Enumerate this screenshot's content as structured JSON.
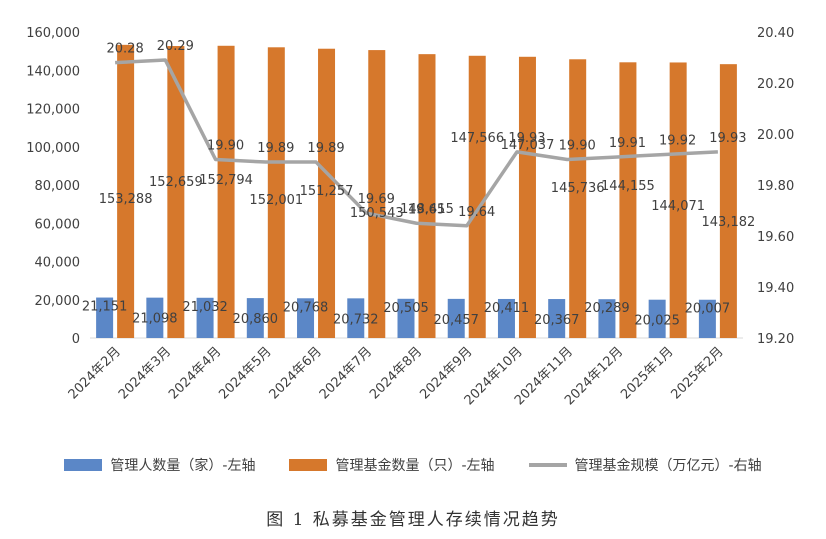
{
  "chart_data": {
    "type": "bar",
    "title": "",
    "categories": [
      "2024年2月",
      "2024年3月",
      "2024年4月",
      "2024年5月",
      "2024年6月",
      "2024年7月",
      "2024年8月",
      "2024年9月",
      "2024年10月",
      "2024年11月",
      "2024年12月",
      "2025年1月",
      "2025年2月"
    ],
    "series": [
      {
        "name": "管理人数量（家）-左轴",
        "type": "bar",
        "axis": "left",
        "color": "#5B87C7",
        "values": [
          21151,
          21098,
          21032,
          20860,
          20768,
          20732,
          20505,
          20457,
          20411,
          20367,
          20289,
          20025,
          20007
        ],
        "labels": [
          "21,151",
          "21,098",
          "21,032",
          "20,860",
          "20,768",
          "20,732",
          "20,505",
          "20,457",
          "20,411",
          "20,367",
          "20,289",
          "20,025",
          "20,007"
        ]
      },
      {
        "name": "管理基金数量（只）-左轴",
        "type": "bar",
        "axis": "left",
        "color": "#D6782C",
        "values": [
          153288,
          152659,
          152794,
          152001,
          151257,
          150543,
          148415,
          147566,
          147037,
          145736,
          144155,
          144071,
          143182
        ],
        "labels": [
          "153,288",
          "152,659",
          "152,794",
          "152,001",
          "151,257",
          "150,543",
          "148,415",
          "147,566",
          "147,037",
          "145,736",
          "144,155",
          "144,071",
          "143,182"
        ]
      },
      {
        "name": "管理基金规模（万亿元）-右轴",
        "type": "line",
        "axis": "right",
        "color": "#A5A5A5",
        "values": [
          20.28,
          20.29,
          19.9,
          19.89,
          19.89,
          19.69,
          19.65,
          19.64,
          19.93,
          19.9,
          19.91,
          19.92,
          19.93
        ],
        "labels": [
          "20.28",
          "20.29",
          "19.90",
          "19.89",
          "19.89",
          "19.69",
          "19.65",
          "19.64",
          "19.93",
          "19.90",
          "19.91",
          "19.92",
          "19.93"
        ]
      }
    ],
    "y_left": {
      "ylim": [
        0,
        160000
      ],
      "ticks": [
        "0",
        "20,000",
        "40,000",
        "60,000",
        "80,000",
        "100,000",
        "120,000",
        "140,000",
        "160,000"
      ]
    },
    "y_right": {
      "ylim": [
        19.2,
        20.4
      ],
      "ticks": [
        "19.20",
        "19.40",
        "19.60",
        "19.80",
        "20.00",
        "20.20",
        "20.40"
      ]
    },
    "grid": false,
    "legend_position": "bottom"
  },
  "caption": "图 1   私募基金管理人存续情况趋势"
}
